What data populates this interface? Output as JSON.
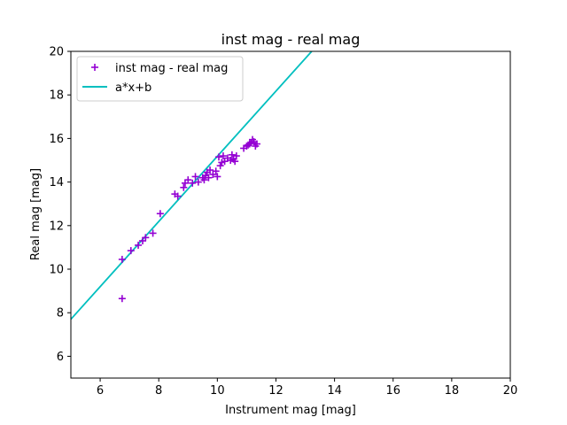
{
  "chart_data": {
    "type": "scatter",
    "title": "inst mag - real mag",
    "xlabel": "Instrument mag [mag]",
    "ylabel": "Real mag [mag]",
    "xlim": [
      5,
      20
    ],
    "ylim": [
      5,
      20
    ],
    "xticks": [
      6,
      8,
      10,
      12,
      14,
      16,
      18,
      20
    ],
    "yticks": [
      6,
      8,
      10,
      12,
      14,
      16,
      18,
      20
    ],
    "grid": false,
    "legend_position": "top-left",
    "series": [
      {
        "name": "inst mag - real mag",
        "kind": "scatter",
        "marker": "plus",
        "color": "#9400d3",
        "points": [
          [
            6.75,
            10.45
          ],
          [
            6.75,
            8.65
          ],
          [
            7.05,
            10.85
          ],
          [
            7.3,
            11.1
          ],
          [
            7.45,
            11.3
          ],
          [
            7.55,
            11.45
          ],
          [
            7.8,
            11.65
          ],
          [
            8.05,
            12.55
          ],
          [
            8.55,
            13.45
          ],
          [
            8.65,
            13.35
          ],
          [
            8.85,
            13.75
          ],
          [
            8.9,
            13.95
          ],
          [
            9.0,
            14.1
          ],
          [
            9.15,
            13.95
          ],
          [
            9.25,
            14.25
          ],
          [
            9.35,
            14.0
          ],
          [
            9.5,
            14.2
          ],
          [
            9.55,
            14.1
          ],
          [
            9.6,
            14.3
          ],
          [
            9.65,
            14.45
          ],
          [
            9.7,
            14.2
          ],
          [
            9.75,
            14.55
          ],
          [
            9.85,
            14.35
          ],
          [
            9.95,
            14.5
          ],
          [
            10.0,
            14.25
          ],
          [
            10.05,
            15.15
          ],
          [
            10.1,
            14.75
          ],
          [
            10.15,
            14.9
          ],
          [
            10.2,
            15.2
          ],
          [
            10.25,
            14.95
          ],
          [
            10.35,
            15.1
          ],
          [
            10.45,
            15.0
          ],
          [
            10.5,
            15.25
          ],
          [
            10.55,
            15.05
          ],
          [
            10.6,
            14.95
          ],
          [
            10.65,
            15.2
          ],
          [
            10.9,
            15.55
          ],
          [
            11.0,
            15.65
          ],
          [
            11.05,
            15.7
          ],
          [
            11.1,
            15.75
          ],
          [
            11.15,
            15.8
          ],
          [
            11.2,
            15.95
          ],
          [
            11.25,
            15.85
          ],
          [
            11.3,
            15.65
          ],
          [
            11.35,
            15.75
          ]
        ]
      },
      {
        "name": "a*x+b",
        "kind": "line",
        "color": "#00bfbf",
        "points": [
          [
            5,
            7.7
          ],
          [
            13.22,
            20.0
          ]
        ]
      }
    ]
  }
}
